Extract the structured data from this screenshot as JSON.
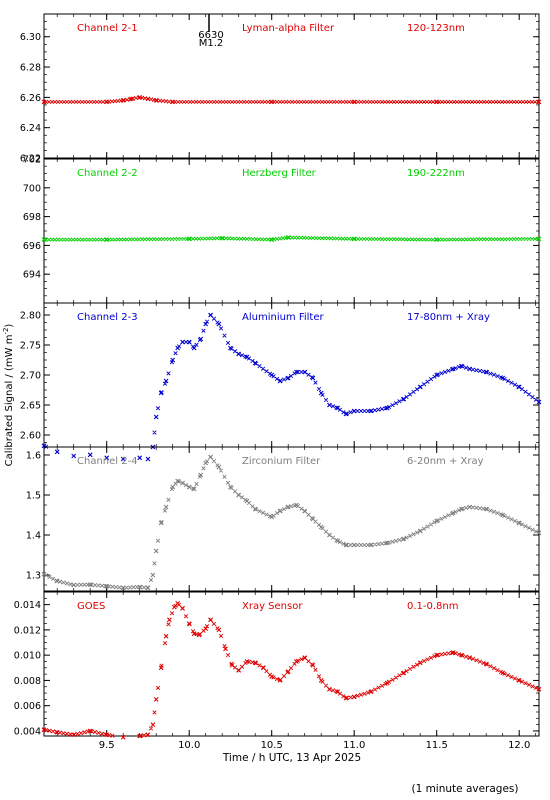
{
  "figure": {
    "ylabel": "Calibrated Signal / (mW m",
    "ylabel_sup": "-2",
    "ylabel_end": ")",
    "xlabel": "Time / h UTC, 13 Apr 2025",
    "footnote": "(1 minute averages)",
    "event_marker": {
      "line1": "6630",
      "line2": "M1.2",
      "time": 10.12
    },
    "frame_color": "#000000"
  },
  "chart_data": [
    {
      "type": "scatter",
      "labels": {
        "left": "Channel 2-1",
        "middle": "Lyman-alpha Filter",
        "right": "120-123nm"
      },
      "color": "#e00000",
      "xlim": [
        9.12,
        12.12
      ],
      "ylim": [
        6.22,
        6.315
      ],
      "yticks": [
        6.22,
        6.24,
        6.26,
        6.28,
        6.3
      ],
      "yticklabels": [
        "6.22",
        "6.24",
        "6.26",
        "6.28",
        "6.30"
      ],
      "x": [
        9.12,
        9.5,
        9.6,
        9.65,
        9.7,
        9.75,
        9.8,
        9.9,
        10.5,
        11.0,
        11.5,
        12.12
      ],
      "y": [
        6.257,
        6.257,
        6.258,
        6.259,
        6.26,
        6.259,
        6.258,
        6.257,
        6.257,
        6.257,
        6.257,
        6.257
      ]
    },
    {
      "type": "scatter",
      "labels": {
        "left": "Channel 2-2",
        "middle": "Herzberg Filter",
        "right": "190-222nm"
      },
      "color": "#00d000",
      "xlim": [
        9.12,
        12.12
      ],
      "ylim": [
        692.0,
        702.0
      ],
      "yticks": [
        694,
        696,
        698,
        700,
        702
      ],
      "yticklabels": [
        "694",
        "696",
        "698",
        "700",
        "702"
      ],
      "x": [
        9.12,
        9.5,
        10.0,
        10.2,
        10.5,
        10.6,
        11.0,
        11.5,
        12.12
      ],
      "y": [
        696.4,
        696.4,
        696.45,
        696.5,
        696.4,
        696.55,
        696.45,
        696.4,
        696.45
      ]
    },
    {
      "type": "scatter",
      "labels": {
        "left": "Channel 2-3",
        "middle": "Aluminium Filter",
        "right": "17-80nm + Xray"
      },
      "color": "#0000d0",
      "xlim": [
        9.12,
        12.12
      ],
      "ylim": [
        2.58,
        2.82
      ],
      "yticks": [
        2.6,
        2.65,
        2.7,
        2.75,
        2.8
      ],
      "yticklabels": [
        "2.60",
        "2.65",
        "2.70",
        "2.75",
        "2.80"
      ],
      "x": [
        9.12,
        9.2,
        9.3,
        9.4,
        9.5,
        9.6,
        9.7,
        9.75,
        9.78,
        9.8,
        9.83,
        9.86,
        9.9,
        9.93,
        9.96,
        10.0,
        10.03,
        10.07,
        10.1,
        10.13,
        10.18,
        10.25,
        10.3,
        10.35,
        10.4,
        10.5,
        10.55,
        10.6,
        10.65,
        10.7,
        10.75,
        10.8,
        10.85,
        10.9,
        10.95,
        11.0,
        11.1,
        11.2,
        11.3,
        11.4,
        11.5,
        11.6,
        11.65,
        11.7,
        11.8,
        11.9,
        12.0,
        12.12
      ],
      "y": [
        2.582,
        2.572,
        2.565,
        2.567,
        2.562,
        2.56,
        2.562,
        2.56,
        2.58,
        2.63,
        2.67,
        2.69,
        2.725,
        2.745,
        2.755,
        2.755,
        2.745,
        2.76,
        2.785,
        2.8,
        2.785,
        2.745,
        2.735,
        2.73,
        2.72,
        2.7,
        2.69,
        2.695,
        2.705,
        2.705,
        2.695,
        2.67,
        2.65,
        2.645,
        2.635,
        2.64,
        2.64,
        2.645,
        2.66,
        2.68,
        2.7,
        2.71,
        2.715,
        2.71,
        2.705,
        2.695,
        2.68,
        2.655
      ]
    },
    {
      "type": "scatter",
      "labels": {
        "left": "Channel 2-4",
        "middle": "Zirconium Filter",
        "right": "6-20nm + Xray"
      },
      "color": "#808080",
      "xlim": [
        9.12,
        12.12
      ],
      "ylim": [
        1.26,
        1.62
      ],
      "yticks": [
        1.3,
        1.4,
        1.5,
        1.6
      ],
      "yticklabels": [
        "1.3",
        "1.4",
        "1.5",
        "1.6"
      ],
      "x": [
        9.12,
        9.2,
        9.3,
        9.4,
        9.5,
        9.6,
        9.7,
        9.75,
        9.78,
        9.8,
        9.83,
        9.86,
        9.9,
        9.93,
        9.96,
        10.0,
        10.03,
        10.07,
        10.1,
        10.13,
        10.18,
        10.25,
        10.3,
        10.35,
        10.4,
        10.5,
        10.55,
        10.6,
        10.65,
        10.7,
        10.75,
        10.8,
        10.85,
        10.9,
        10.95,
        11.0,
        11.1,
        11.2,
        11.3,
        11.4,
        11.5,
        11.6,
        11.65,
        11.7,
        11.8,
        11.9,
        12.0,
        12.12
      ],
      "y": [
        1.302,
        1.285,
        1.275,
        1.276,
        1.272,
        1.268,
        1.27,
        1.268,
        1.3,
        1.36,
        1.43,
        1.47,
        1.52,
        1.535,
        1.53,
        1.52,
        1.515,
        1.55,
        1.58,
        1.595,
        1.57,
        1.52,
        1.5,
        1.485,
        1.465,
        1.445,
        1.46,
        1.47,
        1.475,
        1.46,
        1.44,
        1.42,
        1.4,
        1.385,
        1.375,
        1.375,
        1.375,
        1.38,
        1.39,
        1.41,
        1.435,
        1.455,
        1.465,
        1.47,
        1.465,
        1.45,
        1.43,
        1.405
      ]
    },
    {
      "type": "scatter",
      "labels": {
        "left": "GOES",
        "middle": "Xray Sensor",
        "right": "0.1-0.8nm"
      },
      "color": "#e00000",
      "xlim": [
        9.12,
        12.12
      ],
      "ylim": [
        0.0036,
        0.015
      ],
      "yticks": [
        0.004,
        0.006,
        0.008,
        0.01,
        0.012,
        0.014
      ],
      "yticklabels": [
        "0.004",
        "0.006",
        "0.008",
        "0.010",
        "0.012",
        "0.014"
      ],
      "x": [
        9.12,
        9.2,
        9.3,
        9.4,
        9.5,
        9.6,
        9.7,
        9.75,
        9.78,
        9.8,
        9.83,
        9.86,
        9.88,
        9.91,
        9.93,
        9.96,
        10.0,
        10.03,
        10.06,
        10.1,
        10.13,
        10.18,
        10.22,
        10.26,
        10.3,
        10.35,
        10.4,
        10.45,
        10.5,
        10.55,
        10.6,
        10.65,
        10.7,
        10.75,
        10.8,
        10.85,
        10.9,
        10.95,
        11.0,
        11.1,
        11.2,
        11.3,
        11.4,
        11.5,
        11.6,
        11.65,
        11.7,
        11.8,
        11.9,
        12.0,
        12.12
      ],
      "y": [
        0.0041,
        0.0039,
        0.0037,
        0.004,
        0.0037,
        0.0035,
        0.0036,
        0.0037,
        0.0045,
        0.0065,
        0.009,
        0.0115,
        0.0128,
        0.0138,
        0.0141,
        0.0137,
        0.0125,
        0.0117,
        0.0116,
        0.0121,
        0.0128,
        0.012,
        0.0105,
        0.0092,
        0.0088,
        0.0095,
        0.0094,
        0.009,
        0.0083,
        0.008,
        0.0087,
        0.0095,
        0.0098,
        0.0092,
        0.008,
        0.0073,
        0.0071,
        0.0066,
        0.0067,
        0.0071,
        0.0078,
        0.0086,
        0.0094,
        0.01,
        0.0102,
        0.01,
        0.0098,
        0.0093,
        0.0086,
        0.008,
        0.0073
      ]
    }
  ],
  "x_axis": {
    "ticks": [
      9.5,
      10.0,
      10.5,
      11.0,
      11.5,
      12.0
    ],
    "ticklabels": [
      "9.5",
      "10.0",
      "10.5",
      "11.0",
      "11.5",
      "12.0"
    ]
  }
}
